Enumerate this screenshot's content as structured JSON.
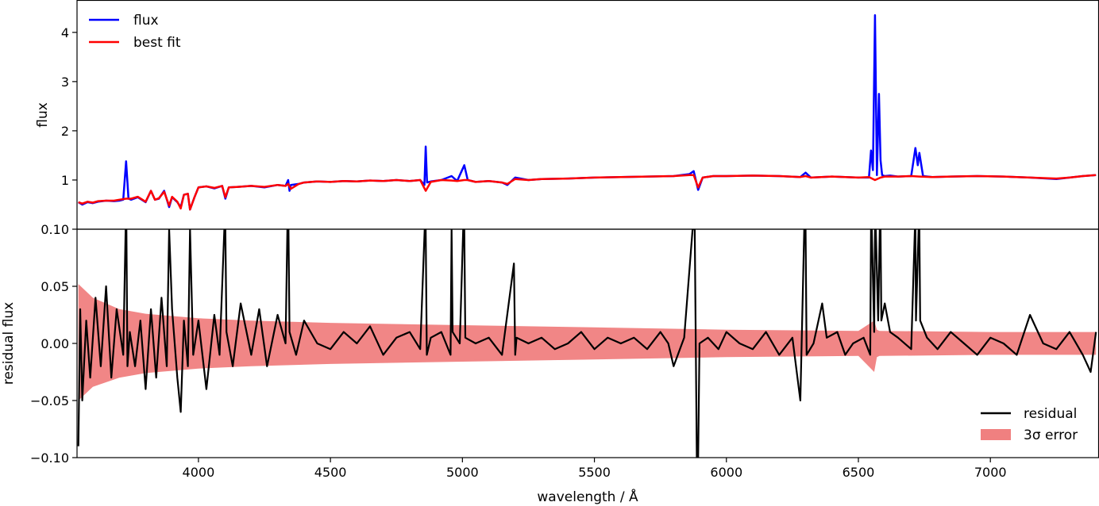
{
  "chart_data": [
    {
      "type": "line",
      "ylabel": "flux",
      "xlabel": "",
      "xlim": [
        3540,
        7410
      ],
      "ylim": [
        0,
        4.65
      ],
      "yticks": [
        1,
        2,
        3,
        4
      ],
      "ytick_labels": [
        "1",
        "2",
        "3",
        "4"
      ],
      "legend_position": "top-left",
      "legend": [
        "flux",
        "best fit"
      ],
      "series": [
        {
          "name": "flux",
          "color": "#0000ff",
          "x": [
            3545,
            3560,
            3580,
            3600,
            3620,
            3650,
            3680,
            3700,
            3715,
            3726,
            3735,
            3745,
            3770,
            3800,
            3820,
            3835,
            3850,
            3870,
            3889,
            3900,
            3920,
            3933,
            3945,
            3960,
            3968,
            3985,
            4000,
            4030,
            4060,
            4090,
            4102,
            4115,
            4150,
            4200,
            4250,
            4300,
            4330,
            4340,
            4345,
            4350,
            4380,
            4400,
            4450,
            4500,
            4550,
            4600,
            4650,
            4700,
            4750,
            4800,
            4840,
            4856,
            4861,
            4866,
            4880,
            4920,
            4959,
            4980,
            5007,
            5020,
            5050,
            5100,
            5150,
            5170,
            5200,
            5250,
            5300,
            5400,
            5500,
            5600,
            5700,
            5800,
            5860,
            5876,
            5893,
            5910,
            5950,
            6000,
            6100,
            6200,
            6280,
            6300,
            6320,
            6400,
            6450,
            6500,
            6540,
            6548,
            6555,
            6563,
            6570,
            6578,
            6584,
            6590,
            6600,
            6620,
            6650,
            6700,
            6716,
            6725,
            6731,
            6745,
            6780,
            6850,
            6950,
            7050,
            7150,
            7250,
            7300,
            7350,
            7400
          ],
          "y": [
            0.55,
            0.5,
            0.55,
            0.53,
            0.56,
            0.58,
            0.57,
            0.58,
            0.6,
            1.38,
            0.62,
            0.6,
            0.65,
            0.55,
            0.78,
            0.6,
            0.62,
            0.78,
            0.45,
            0.65,
            0.55,
            0.45,
            0.7,
            0.72,
            0.4,
            0.65,
            0.85,
            0.87,
            0.83,
            0.88,
            0.62,
            0.85,
            0.86,
            0.88,
            0.85,
            0.9,
            0.88,
            1.0,
            0.78,
            0.9,
            0.92,
            0.95,
            0.97,
            0.96,
            0.98,
            0.97,
            0.99,
            0.98,
            1.0,
            0.98,
            1.0,
            0.9,
            1.68,
            0.95,
            0.97,
            1.0,
            1.08,
            0.98,
            1.3,
            1.0,
            0.96,
            0.98,
            0.95,
            0.9,
            1.05,
            1.0,
            1.02,
            1.03,
            1.05,
            1.06,
            1.07,
            1.08,
            1.12,
            1.18,
            0.8,
            1.05,
            1.08,
            1.08,
            1.09,
            1.08,
            1.06,
            1.15,
            1.05,
            1.07,
            1.06,
            1.05,
            1.05,
            1.6,
            1.2,
            4.35,
            1.1,
            2.75,
            1.4,
            1.1,
            1.08,
            1.09,
            1.07,
            1.08,
            1.65,
            1.3,
            1.55,
            1.08,
            1.06,
            1.07,
            1.08,
            1.07,
            1.05,
            1.02,
            1.05,
            1.08,
            1.1
          ]
        },
        {
          "name": "best fit",
          "color": "#ff0000",
          "x": [
            3545,
            3560,
            3580,
            3600,
            3620,
            3650,
            3680,
            3700,
            3726,
            3745,
            3770,
            3800,
            3820,
            3835,
            3850,
            3870,
            3889,
            3900,
            3920,
            3933,
            3945,
            3960,
            3968,
            3985,
            4000,
            4030,
            4060,
            4090,
            4102,
            4115,
            4150,
            4200,
            4250,
            4300,
            4330,
            4340,
            4350,
            4380,
            4400,
            4450,
            4500,
            4550,
            4600,
            4650,
            4700,
            4750,
            4800,
            4840,
            4861,
            4880,
            4920,
            4959,
            4980,
            5007,
            5020,
            5050,
            5100,
            5150,
            5170,
            5200,
            5250,
            5300,
            5400,
            5500,
            5600,
            5700,
            5800,
            5860,
            5876,
            5893,
            5910,
            5950,
            6000,
            6100,
            6200,
            6280,
            6300,
            6320,
            6400,
            6450,
            6500,
            6540,
            6563,
            6584,
            6600,
            6650,
            6700,
            6731,
            6780,
            6850,
            6950,
            7050,
            7150,
            7250,
            7300,
            7350,
            7400
          ],
          "y": [
            0.55,
            0.52,
            0.56,
            0.54,
            0.57,
            0.58,
            0.58,
            0.6,
            0.62,
            0.62,
            0.66,
            0.56,
            0.78,
            0.6,
            0.63,
            0.76,
            0.48,
            0.66,
            0.56,
            0.42,
            0.7,
            0.72,
            0.4,
            0.65,
            0.85,
            0.87,
            0.84,
            0.88,
            0.65,
            0.85,
            0.86,
            0.88,
            0.86,
            0.9,
            0.88,
            0.92,
            0.82,
            0.92,
            0.95,
            0.97,
            0.96,
            0.98,
            0.97,
            0.99,
            0.98,
            1.0,
            0.98,
            1.0,
            0.78,
            0.96,
            1.0,
            0.99,
            0.98,
            1.0,
            1.0,
            0.96,
            0.98,
            0.95,
            0.92,
            1.02,
            1.0,
            1.02,
            1.03,
            1.05,
            1.06,
            1.07,
            1.08,
            1.1,
            1.1,
            0.85,
            1.05,
            1.08,
            1.08,
            1.09,
            1.08,
            1.06,
            1.08,
            1.05,
            1.07,
            1.06,
            1.05,
            1.06,
            1.0,
            1.05,
            1.07,
            1.07,
            1.08,
            1.07,
            1.06,
            1.07,
            1.08,
            1.07,
            1.05,
            1.03,
            1.05,
            1.08,
            1.1
          ]
        }
      ]
    },
    {
      "type": "line",
      "ylabel": "residual flux",
      "xlabel": "wavelength / Å",
      "xlim": [
        3540,
        7410
      ],
      "ylim": [
        -0.1,
        0.1
      ],
      "xticks": [
        4000,
        4500,
        5000,
        5500,
        6000,
        6500,
        7000
      ],
      "xtick_labels": [
        "4000",
        "4500",
        "5000",
        "5500",
        "6000",
        "6500",
        "7000"
      ],
      "yticks": [
        -0.1,
        -0.05,
        0.0,
        0.05,
        0.1
      ],
      "ytick_labels": [
        "−0.10",
        "−0.05",
        "0.00",
        "0.05",
        "0.10"
      ],
      "legend_position": "bottom-right",
      "legend": [
        "residual",
        "3σ error"
      ],
      "error_band": {
        "name": "3σ error",
        "color": "#f08080",
        "x": [
          3545,
          3600,
          3700,
          3800,
          4000,
          4200,
          4500,
          5000,
          5500,
          6000,
          6500,
          6560,
          6570,
          6580,
          7000,
          7400
        ],
        "upper": [
          0.052,
          0.04,
          0.03,
          0.026,
          0.022,
          0.02,
          0.018,
          0.016,
          0.014,
          0.012,
          0.011,
          0.02,
          0.012,
          0.011,
          0.01,
          0.01
        ],
        "lower": [
          -0.05,
          -0.038,
          -0.03,
          -0.026,
          -0.022,
          -0.02,
          -0.018,
          -0.016,
          -0.014,
          -0.012,
          -0.011,
          -0.025,
          -0.012,
          -0.011,
          -0.01,
          -0.01
        ]
      },
      "series": [
        {
          "name": "residual",
          "color": "#000000",
          "x": [
            3545,
            3552,
            3560,
            3575,
            3590,
            3610,
            3630,
            3650,
            3670,
            3690,
            3715,
            3724,
            3727,
            3731,
            3740,
            3760,
            3780,
            3800,
            3820,
            3840,
            3860,
            3880,
            3889,
            3900,
            3920,
            3933,
            3945,
            3960,
            3968,
            3980,
            4000,
            4030,
            4060,
            4080,
            4098,
            4102,
            4106,
            4130,
            4160,
            4200,
            4230,
            4260,
            4300,
            4330,
            4337,
            4341,
            4345,
            4370,
            4400,
            4450,
            4500,
            4550,
            4600,
            4650,
            4700,
            4750,
            4800,
            4840,
            4857,
            4861,
            4865,
            4880,
            4920,
            4955,
            4959,
            4963,
            4990,
            5003,
            5007,
            5011,
            5050,
            5100,
            5150,
            5195,
            5200,
            5205,
            5250,
            5300,
            5350,
            5400,
            5450,
            5500,
            5550,
            5600,
            5650,
            5700,
            5750,
            5780,
            5800,
            5840,
            5872,
            5876,
            5880,
            5888,
            5893,
            5898,
            5930,
            5970,
            6000,
            6050,
            6100,
            6150,
            6200,
            6250,
            6280,
            6295,
            6300,
            6304,
            6330,
            6363,
            6380,
            6420,
            6450,
            6480,
            6520,
            6545,
            6548,
            6551,
            6560,
            6563,
            6566,
            6575,
            6581,
            6584,
            6587,
            6600,
            6620,
            6650,
            6700,
            6714,
            6716,
            6718,
            6728,
            6731,
            6734,
            6760,
            6800,
            6850,
            6900,
            6950,
            7000,
            7050,
            7100,
            7150,
            7200,
            7250,
            7300,
            7350,
            7380,
            7400
          ],
          "y": [
            -0.09,
            0.03,
            -0.05,
            0.02,
            -0.03,
            0.04,
            -0.02,
            0.05,
            -0.03,
            0.03,
            -0.01,
            0.1,
            0.1,
            -0.02,
            0.01,
            -0.02,
            0.02,
            -0.04,
            0.03,
            -0.03,
            0.04,
            -0.02,
            0.1,
            0.03,
            -0.03,
            -0.06,
            0.02,
            -0.02,
            0.1,
            -0.01,
            0.02,
            -0.04,
            0.025,
            -0.01,
            0.1,
            0.1,
            0.01,
            -0.02,
            0.035,
            -0.01,
            0.03,
            -0.02,
            0.025,
            0.0,
            0.1,
            0.1,
            0.01,
            -0.01,
            0.02,
            0.0,
            -0.005,
            0.01,
            0.0,
            0.015,
            -0.01,
            0.005,
            0.01,
            -0.005,
            0.1,
            0.1,
            -0.01,
            0.005,
            0.01,
            -0.01,
            0.1,
            0.01,
            0.0,
            0.1,
            0.1,
            0.005,
            0.0,
            0.005,
            -0.01,
            0.07,
            -0.01,
            0.005,
            0.0,
            0.005,
            -0.005,
            0.0,
            0.01,
            -0.005,
            0.005,
            0.0,
            0.005,
            -0.005,
            0.01,
            0.0,
            -0.02,
            0.005,
            0.1,
            0.1,
            0.1,
            -0.1,
            -0.1,
            0.0,
            0.005,
            -0.005,
            0.01,
            0.0,
            -0.005,
            0.01,
            -0.01,
            0.005,
            -0.05,
            0.1,
            0.1,
            -0.01,
            0.0,
            0.035,
            0.005,
            0.01,
            -0.01,
            0.0,
            0.005,
            -0.01,
            0.1,
            0.1,
            0.01,
            0.1,
            0.1,
            0.02,
            0.1,
            0.1,
            0.02,
            0.035,
            0.01,
            0.005,
            -0.005,
            0.1,
            0.1,
            0.02,
            0.1,
            0.1,
            0.02,
            0.005,
            -0.005,
            0.01,
            0.0,
            -0.01,
            0.005,
            0.0,
            -0.01,
            0.025,
            0.0,
            -0.005,
            0.01,
            -0.01,
            -0.025,
            0.01
          ]
        }
      ]
    }
  ]
}
